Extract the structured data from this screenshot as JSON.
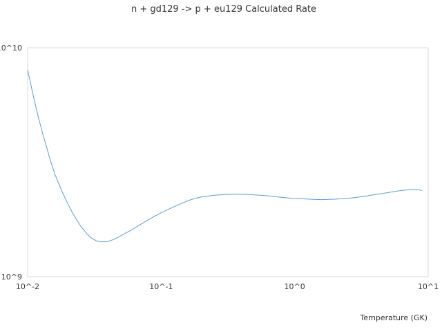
{
  "chart_data": {
    "type": "line",
    "title": "n + gd129 -> p + eu129 Calculated Rate",
    "xlabel": "Temperature (GK)",
    "ylabel": "",
    "x_scale": "log",
    "y_scale": "log",
    "xlim": [
      0.01,
      10
    ],
    "ylim": [
      1000000000,
      10000000000
    ],
    "x_ticks": [
      {
        "value": 0.01,
        "label": "10^-2"
      },
      {
        "value": 0.1,
        "label": "10^-1"
      },
      {
        "value": 1,
        "label": "10^0"
      },
      {
        "value": 10,
        "label": "10^1"
      }
    ],
    "y_ticks": [
      {
        "value": 1000000000,
        "label": "10^9"
      },
      {
        "value": 10000000000,
        "label": "10^10"
      }
    ],
    "grid": false,
    "legend": "none",
    "line_color": "#5b9bd5",
    "series": [
      {
        "x": [
          0.01,
          0.011,
          0.012,
          0.013,
          0.014,
          0.015,
          0.016,
          0.018,
          0.02,
          0.022,
          0.025,
          0.028,
          0.03,
          0.033,
          0.036,
          0.04,
          0.045,
          0.05,
          0.06,
          0.07,
          0.08,
          0.09,
          0.1,
          0.12,
          0.14,
          0.16,
          0.18,
          0.2,
          0.25,
          0.3,
          0.35,
          0.4,
          0.45,
          0.5,
          0.6,
          0.7,
          0.8,
          0.9,
          1.0,
          1.2,
          1.4,
          1.6,
          1.8,
          2.0,
          2.5,
          3.0,
          3.5,
          4.0,
          4.5,
          5.0,
          6.0,
          7.0,
          8.0,
          9.0
        ],
        "values": [
          8000000000,
          6200000000,
          5000000000,
          4200000000,
          3600000000,
          3150000000,
          2800000000,
          2370000000,
          2080000000,
          1870000000,
          1660000000,
          1530000000,
          1475000000,
          1430000000,
          1420000000,
          1425000000,
          1460000000,
          1510000000,
          1600000000,
          1690000000,
          1770000000,
          1840000000,
          1900000000,
          2000000000,
          2080000000,
          2150000000,
          2200000000,
          2230000000,
          2270000000,
          2285000000,
          2290000000,
          2290000000,
          2285000000,
          2275000000,
          2260000000,
          2240000000,
          2220000000,
          2205000000,
          2195000000,
          2185000000,
          2175000000,
          2170000000,
          2175000000,
          2180000000,
          2200000000,
          2225000000,
          2255000000,
          2285000000,
          2305000000,
          2330000000,
          2370000000,
          2395000000,
          2410000000,
          2380000000
        ]
      }
    ]
  }
}
